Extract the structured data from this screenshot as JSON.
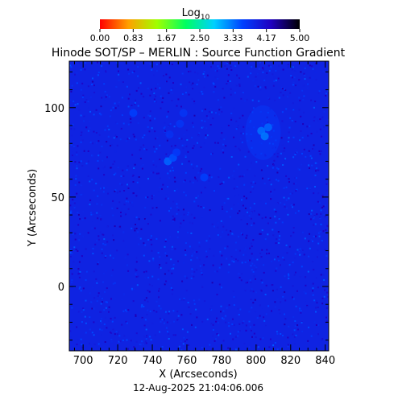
{
  "chart_data": {
    "type": "heatmap",
    "title": "Hinode SOT/SP – MERLIN : Source Function Gradient",
    "xlabel": "X (Arcseconds)",
    "ylabel": "Y (Arcseconds)",
    "xlim": [
      692,
      842
    ],
    "ylim": [
      -36,
      126
    ],
    "xticks": [
      700,
      720,
      740,
      760,
      780,
      800,
      820,
      840
    ],
    "yticks": [
      0,
      50,
      100
    ],
    "colorbar": {
      "label_base": "Log",
      "label_sub": "10",
      "ticks": [
        "0.00",
        "0.83",
        "1.67",
        "2.50",
        "3.33",
        "4.17",
        "5.00"
      ],
      "range": [
        0,
        5
      ],
      "colors": [
        "#ff0000",
        "#ffa000",
        "#a0ff00",
        "#00ff60",
        "#00d0ff",
        "#0040ff",
        "#2000c0",
        "#000000"
      ]
    },
    "background_value": 3.9,
    "features": [
      {
        "x": 803,
        "y": 87,
        "value": 3.35
      },
      {
        "x": 805,
        "y": 84,
        "value": 3.3
      },
      {
        "x": 807,
        "y": 89,
        "value": 3.4
      },
      {
        "x": 749,
        "y": 70,
        "value": 3.4
      },
      {
        "x": 752,
        "y": 72,
        "value": 3.5
      },
      {
        "x": 729,
        "y": 97,
        "value": 3.6
      },
      {
        "x": 770,
        "y": 61,
        "value": 3.6
      },
      {
        "x": 758,
        "y": 97,
        "value": 3.7
      },
      {
        "x": 756,
        "y": 91,
        "value": 3.7
      },
      {
        "x": 750,
        "y": 85,
        "value": 3.75
      },
      {
        "x": 754,
        "y": 75,
        "value": 3.65
      }
    ]
  },
  "timestamp": "12-Aug-2025 21:04:06.006"
}
